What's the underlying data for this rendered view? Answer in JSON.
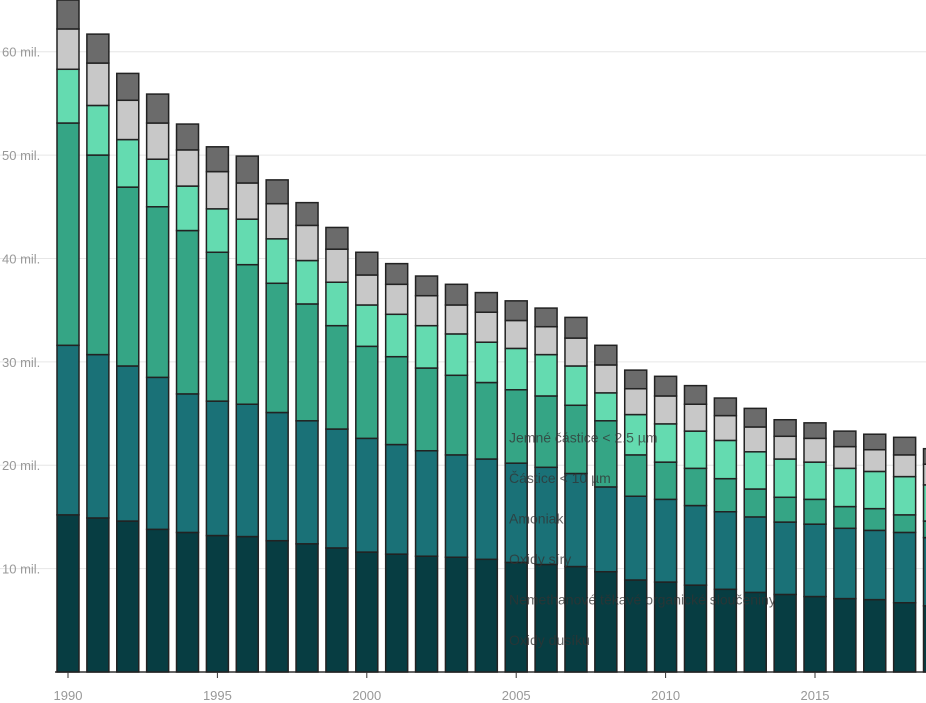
{
  "chart_data": {
    "type": "stacked-bar",
    "x": [
      1990,
      1991,
      1992,
      1993,
      1994,
      1995,
      1996,
      1997,
      1998,
      1999,
      2000,
      2001,
      2002,
      2003,
      2004,
      2005,
      2006,
      2007,
      2008,
      2009,
      2010,
      2011,
      2012,
      2013,
      2014,
      2015,
      2016,
      2017,
      2018,
      2019
    ],
    "xticks": [
      1990,
      1995,
      2000,
      2005,
      2010,
      2015
    ],
    "ylim": [
      0,
      65
    ],
    "yticks": [
      {
        "value": 10,
        "label": "10 mil."
      },
      {
        "value": 20,
        "label": "20 mil."
      },
      {
        "value": 30,
        "label": "30 mil."
      },
      {
        "value": 40,
        "label": "40 mil."
      },
      {
        "value": 50,
        "label": "50 mil."
      },
      {
        "value": 60,
        "label": "60 mil."
      }
    ],
    "grid": true,
    "series": [
      {
        "name": "Oxidy dusíku",
        "color": "#073d42",
        "values": [
          15.2,
          14.9,
          14.6,
          13.8,
          13.5,
          13.2,
          13.1,
          12.7,
          12.4,
          12.0,
          11.6,
          11.4,
          11.2,
          11.1,
          10.9,
          10.6,
          10.4,
          10.2,
          9.7,
          8.9,
          8.7,
          8.4,
          8.0,
          7.7,
          7.5,
          7.3,
          7.1,
          7.0,
          6.7,
          6.4
        ]
      },
      {
        "name": "Nemethanové těkavé organické sloučeniny",
        "color": "#1a7177",
        "values": [
          16.4,
          15.8,
          15.0,
          14.7,
          13.4,
          13.0,
          12.8,
          12.4,
          11.9,
          11.5,
          11.0,
          10.6,
          10.2,
          9.9,
          9.7,
          9.6,
          9.4,
          9.0,
          8.2,
          8.1,
          8.0,
          7.7,
          7.5,
          7.3,
          7.0,
          7.0,
          6.8,
          6.7,
          6.8,
          6.6
        ]
      },
      {
        "name": "Oxidy síry",
        "color": "#35a585",
        "values": [
          21.5,
          19.3,
          17.3,
          16.5,
          15.8,
          14.4,
          13.5,
          12.5,
          11.3,
          10.0,
          8.9,
          8.5,
          8.0,
          7.7,
          7.4,
          7.1,
          6.9,
          6.6,
          6.4,
          4.0,
          3.6,
          3.6,
          3.2,
          2.7,
          2.4,
          2.4,
          2.1,
          2.1,
          1.7,
          1.6
        ]
      },
      {
        "name": "Amoniak",
        "color": "#64dbb0",
        "values": [
          5.2,
          4.8,
          4.6,
          4.6,
          4.3,
          4.2,
          4.4,
          4.3,
          4.2,
          4.2,
          4.0,
          4.1,
          4.1,
          4.0,
          3.9,
          4.0,
          4.0,
          3.8,
          2.7,
          3.9,
          3.7,
          3.6,
          3.7,
          3.6,
          3.7,
          3.6,
          3.7,
          3.6,
          3.7,
          3.5
        ]
      },
      {
        "name": "Částice < 10 µm",
        "color": "#c8c8c8",
        "values": [
          3.9,
          4.1,
          3.8,
          3.5,
          3.5,
          3.6,
          3.5,
          3.4,
          3.4,
          3.2,
          2.9,
          2.9,
          2.9,
          2.8,
          2.9,
          2.7,
          2.7,
          2.7,
          2.7,
          2.5,
          2.7,
          2.6,
          2.4,
          2.4,
          2.2,
          2.3,
          2.1,
          2.1,
          2.1,
          2.0
        ]
      },
      {
        "name": "Jemné částice < 2.5 µm",
        "color": "#6b6b6b",
        "values": [
          2.8,
          2.8,
          2.6,
          2.8,
          2.5,
          2.4,
          2.6,
          2.3,
          2.2,
          2.1,
          2.2,
          2.0,
          1.9,
          2.0,
          1.9,
          1.9,
          1.8,
          2.0,
          1.9,
          1.8,
          1.9,
          1.8,
          1.7,
          1.8,
          1.6,
          1.5,
          1.5,
          1.5,
          1.7,
          1.5
        ]
      }
    ]
  }
}
